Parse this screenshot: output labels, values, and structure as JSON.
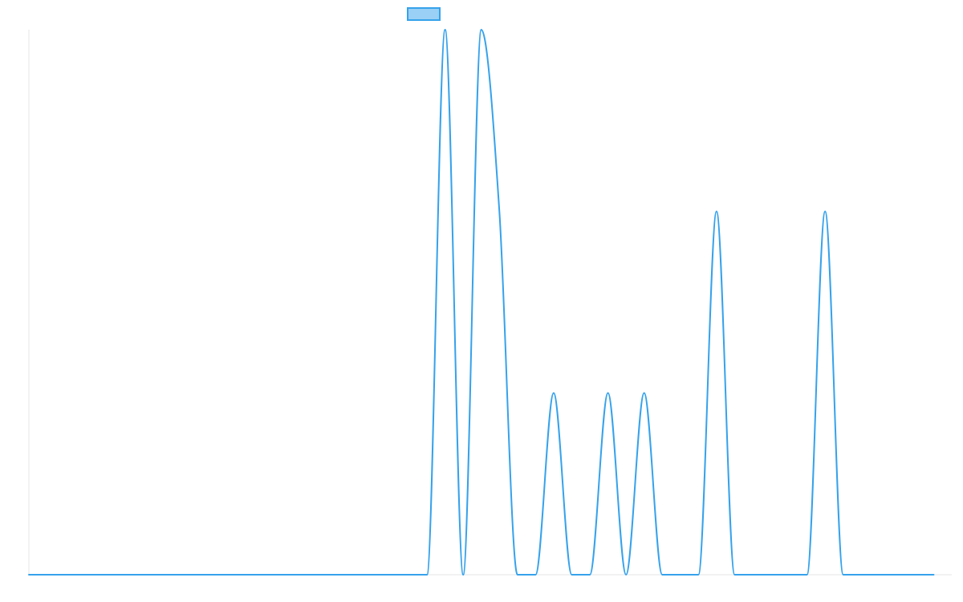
{
  "colors": {
    "series": "#36a2eb",
    "series_fill": "#9ad0f5",
    "axis": "#e6e6e6",
    "background": "#ffffff"
  },
  "chart_data": {
    "type": "line",
    "title": "",
    "xlabel": "",
    "ylabel": "",
    "x_range": [
      0,
      51
    ],
    "ylim": [
      0,
      3
    ],
    "grid": false,
    "show_ticks": false,
    "legend": {
      "position": "top-center",
      "entries": [
        {
          "label": "",
          "color": "#36a2eb"
        }
      ]
    },
    "series": [
      {
        "values": [
          0,
          0,
          0,
          0,
          0,
          0,
          0,
          0,
          0,
          0,
          0,
          0,
          0,
          0,
          0,
          0,
          0,
          0,
          0,
          0,
          0,
          0,
          0,
          3,
          0,
          3,
          2,
          0,
          0,
          1,
          0,
          0,
          1,
          0,
          1,
          0,
          0,
          0,
          2,
          0,
          0,
          0,
          0,
          0,
          2,
          0,
          0,
          0,
          0,
          0,
          0
        ]
      }
    ]
  }
}
